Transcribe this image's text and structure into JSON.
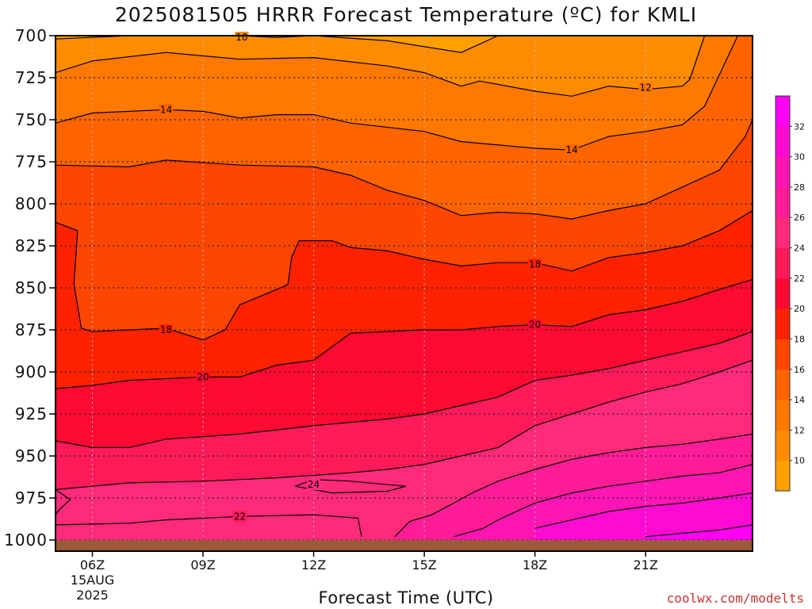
{
  "title": "2025081505 HRRR Forecast Temperature (ºC) for KMLI",
  "xlabel": "Forecast Time (UTC)",
  "credit": "coolwx.com/modelts",
  "colors": {
    "ground": "#9c5a3c",
    "background_plot": "#ffa500",
    "contour_line": "#000000",
    "grid": "#7a7a7a"
  },
  "chart_data": {
    "type": "heatmap",
    "title": "2025081505 HRRR Forecast Temperature (ºC) for KMLI",
    "xlabel": "Forecast Time (UTC)",
    "ylabel": "",
    "x_axis": {
      "range_hours": [
        5,
        23.9
      ],
      "tick_hours": [
        6,
        9,
        12,
        15,
        18,
        21
      ],
      "tick_labels": [
        "06Z",
        "09Z",
        "12Z",
        "15Z",
        "18Z",
        "21Z"
      ],
      "date_label_line1": "15AUG",
      "date_label_line2": "2025"
    },
    "y_axis": {
      "range_hpa": [
        700,
        1000
      ],
      "inverted": true,
      "ticks": [
        700,
        725,
        750,
        775,
        800,
        825,
        850,
        875,
        900,
        925,
        950,
        975,
        1000
      ]
    },
    "grid": true,
    "colorbar": {
      "ticks": [
        10,
        12,
        14,
        16,
        18,
        20,
        22,
        24,
        26,
        28,
        30,
        32
      ],
      "bands": [
        {
          "min": 8,
          "max": 10,
          "color": "#ffa000"
        },
        {
          "min": 10,
          "max": 12,
          "color": "#ff8c00"
        },
        {
          "min": 12,
          "max": 14,
          "color": "#ff7800"
        },
        {
          "min": 14,
          "max": 16,
          "color": "#ff6400"
        },
        {
          "min": 16,
          "max": 18,
          "color": "#ff4600"
        },
        {
          "min": 18,
          "max": 20,
          "color": "#ff2200"
        },
        {
          "min": 20,
          "max": 22,
          "color": "#ff0a32"
        },
        {
          "min": 22,
          "max": 24,
          "color": "#ff1a5a"
        },
        {
          "min": 24,
          "max": 26,
          "color": "#ff2a7a"
        },
        {
          "min": 26,
          "max": 28,
          "color": "#ff1c96"
        },
        {
          "min": 28,
          "max": 30,
          "color": "#ff14b4"
        },
        {
          "min": 30,
          "max": 32,
          "color": "#ff0ad2"
        },
        {
          "min": 32,
          "max": 34,
          "color": "#ff00f5"
        }
      ]
    },
    "contours": [
      {
        "value": 10,
        "label": "10",
        "points": [
          [
            5,
            702
          ],
          [
            7,
            700
          ],
          [
            10,
            700
          ],
          [
            11,
            701
          ],
          [
            12,
            700
          ],
          [
            14,
            703
          ],
          [
            16,
            710
          ],
          [
            17,
            700
          ]
        ]
      },
      {
        "value": 12,
        "label": "12",
        "points": [
          [
            5,
            722
          ],
          [
            6,
            715
          ],
          [
            8,
            710
          ],
          [
            10,
            714
          ],
          [
            12,
            713
          ],
          [
            14,
            718
          ],
          [
            15,
            722
          ],
          [
            16,
            730
          ],
          [
            16.5,
            727
          ],
          [
            18,
            733
          ],
          [
            19,
            736
          ],
          [
            20,
            730
          ],
          [
            21,
            732
          ],
          [
            22,
            730
          ],
          [
            22.2,
            726
          ],
          [
            22.6,
            700
          ]
        ]
      },
      {
        "value": 14,
        "label": "14",
        "points": [
          [
            5,
            752
          ],
          [
            6,
            746
          ],
          [
            8,
            744
          ],
          [
            9,
            745
          ],
          [
            10,
            749
          ],
          [
            11,
            747
          ],
          [
            12,
            747
          ],
          [
            13,
            752
          ],
          [
            15,
            757
          ],
          [
            16,
            763
          ],
          [
            18,
            767
          ],
          [
            19,
            768
          ],
          [
            20,
            760
          ],
          [
            21,
            757
          ],
          [
            22,
            753
          ],
          [
            22.6,
            742
          ],
          [
            23.5,
            700
          ]
        ]
      },
      {
        "value": 16,
        "label": "16",
        "points": [
          [
            5,
            777
          ],
          [
            7,
            778
          ],
          [
            8,
            774
          ],
          [
            10,
            777
          ],
          [
            12,
            778
          ],
          [
            13,
            783
          ],
          [
            14,
            792
          ],
          [
            15,
            798
          ],
          [
            16,
            807
          ],
          [
            17,
            805
          ],
          [
            18,
            806
          ],
          [
            19,
            809
          ],
          [
            20,
            804
          ],
          [
            21,
            800
          ],
          [
            22,
            790
          ],
          [
            23,
            780
          ],
          [
            23.7,
            760
          ],
          [
            23.9,
            750
          ]
        ]
      },
      {
        "value": 18,
        "label": "18",
        "points": [
          [
            5,
            811
          ],
          [
            5.6,
            816
          ],
          [
            5.5,
            848
          ],
          [
            5.7,
            874
          ],
          [
            6,
            876
          ],
          [
            7,
            875
          ],
          [
            8,
            874
          ],
          [
            9,
            881
          ],
          [
            9.6,
            875
          ],
          [
            10,
            860
          ],
          [
            11,
            851
          ],
          [
            11.3,
            848
          ],
          [
            11.4,
            832
          ],
          [
            11.6,
            822
          ],
          [
            12.5,
            822
          ],
          [
            13,
            826
          ],
          [
            14,
            828
          ],
          [
            15,
            833
          ],
          [
            16,
            837
          ],
          [
            17,
            835
          ],
          [
            18,
            835
          ],
          [
            19,
            840
          ],
          [
            20,
            832
          ],
          [
            21,
            829
          ],
          [
            22,
            825
          ],
          [
            23,
            816
          ],
          [
            23.9,
            804
          ]
        ]
      },
      {
        "value": 20,
        "label": "20",
        "points": [
          [
            5,
            910
          ],
          [
            6,
            908
          ],
          [
            7,
            905
          ],
          [
            9,
            903
          ],
          [
            10,
            903
          ],
          [
            11,
            896
          ],
          [
            12,
            893
          ],
          [
            13,
            877
          ],
          [
            15,
            875
          ],
          [
            16,
            875
          ],
          [
            17,
            873
          ],
          [
            18,
            872
          ],
          [
            19,
            873
          ],
          [
            20,
            866
          ],
          [
            21,
            863
          ],
          [
            22,
            858
          ],
          [
            23,
            851
          ],
          [
            23.9,
            845
          ]
        ]
      },
      {
        "value": 22,
        "label": "22",
        "points": [
          [
            5,
            941
          ],
          [
            6,
            945
          ],
          [
            7,
            945
          ],
          [
            8,
            940
          ],
          [
            10,
            937
          ],
          [
            12,
            932
          ],
          [
            14,
            928
          ],
          [
            15,
            925
          ],
          [
            17,
            915
          ],
          [
            18,
            905
          ],
          [
            19,
            902
          ],
          [
            20,
            898
          ],
          [
            21,
            893
          ],
          [
            22,
            888
          ],
          [
            23,
            883
          ],
          [
            23.9,
            876
          ]
        ]
      },
      {
        "value": 24,
        "label": "",
        "points": [
          [
            5,
            970
          ],
          [
            6,
            968
          ],
          [
            7,
            966
          ],
          [
            9,
            965
          ],
          [
            11,
            963
          ],
          [
            13,
            960
          ],
          [
            14,
            958
          ],
          [
            15,
            955
          ],
          [
            17,
            945
          ],
          [
            18,
            932
          ],
          [
            19,
            925
          ],
          [
            20,
            918
          ],
          [
            21,
            912
          ],
          [
            22,
            907
          ],
          [
            23,
            900
          ],
          [
            23.9,
            893
          ]
        ]
      },
      {
        "value": 24,
        "label": "24",
        "points": [
          [
            11.5,
            968
          ],
          [
            12,
            964
          ],
          [
            13,
            965
          ],
          [
            14.5,
            968
          ],
          [
            14,
            971
          ],
          [
            12.5,
            972
          ],
          [
            11.5,
            968
          ]
        ]
      },
      {
        "value": 22,
        "label": "22",
        "points": [
          [
            5,
            991
          ],
          [
            7,
            990
          ],
          [
            8,
            988
          ],
          [
            10,
            986
          ],
          [
            12,
            985
          ],
          [
            13.2,
            987
          ],
          [
            13.3,
            998
          ]
        ]
      },
      {
        "value": 26,
        "label": "",
        "points": [
          [
            14.2,
            998
          ],
          [
            14.6,
            989
          ],
          [
            15.2,
            985
          ],
          [
            15.8,
            978
          ],
          [
            16.3,
            972
          ],
          [
            17,
            965
          ],
          [
            18,
            958
          ],
          [
            19,
            952
          ],
          [
            20,
            948
          ],
          [
            21,
            945
          ],
          [
            22,
            943
          ],
          [
            23,
            940
          ],
          [
            23.9,
            937
          ]
        ]
      },
      {
        "value": 28,
        "label": "",
        "points": [
          [
            15.8,
            998
          ],
          [
            16.6,
            993
          ],
          [
            17,
            988
          ],
          [
            18,
            978
          ],
          [
            19,
            972
          ],
          [
            20,
            968
          ],
          [
            21,
            965
          ],
          [
            22,
            962
          ],
          [
            23,
            960
          ],
          [
            23.9,
            955
          ]
        ]
      },
      {
        "value": 30,
        "label": "",
        "points": [
          [
            18,
            993
          ],
          [
            19,
            988
          ],
          [
            20,
            983
          ],
          [
            21,
            980
          ],
          [
            22,
            978
          ],
          [
            23,
            975
          ],
          [
            23.9,
            972
          ]
        ]
      },
      {
        "value": 32,
        "label": "",
        "points": [
          [
            21,
            998
          ],
          [
            22,
            996
          ],
          [
            23,
            994
          ],
          [
            23.9,
            991
          ]
        ]
      },
      {
        "value": 24,
        "label": "",
        "points": [
          [
            5,
            970
          ],
          [
            5.4,
            976
          ],
          [
            5.1,
            982
          ],
          [
            5,
            985
          ]
        ]
      }
    ],
    "label_positions": [
      {
        "text": "10",
        "hour": 10.05,
        "hpa": 701
      },
      {
        "text": "12",
        "hour": 21.0,
        "hpa": 731
      },
      {
        "text": "14",
        "hour": 8.0,
        "hpa": 744
      },
      {
        "text": "14",
        "hour": 19.0,
        "hpa": 768
      },
      {
        "text": "18",
        "hour": 8.0,
        "hpa": 875
      },
      {
        "text": "18",
        "hour": 18.0,
        "hpa": 836
      },
      {
        "text": "20",
        "hour": 9.0,
        "hpa": 903
      },
      {
        "text": "20",
        "hour": 18.0,
        "hpa": 872
      },
      {
        "text": "24",
        "hour": 12.0,
        "hpa": 967
      },
      {
        "text": "22",
        "hour": 10.0,
        "hpa": 986
      }
    ]
  }
}
